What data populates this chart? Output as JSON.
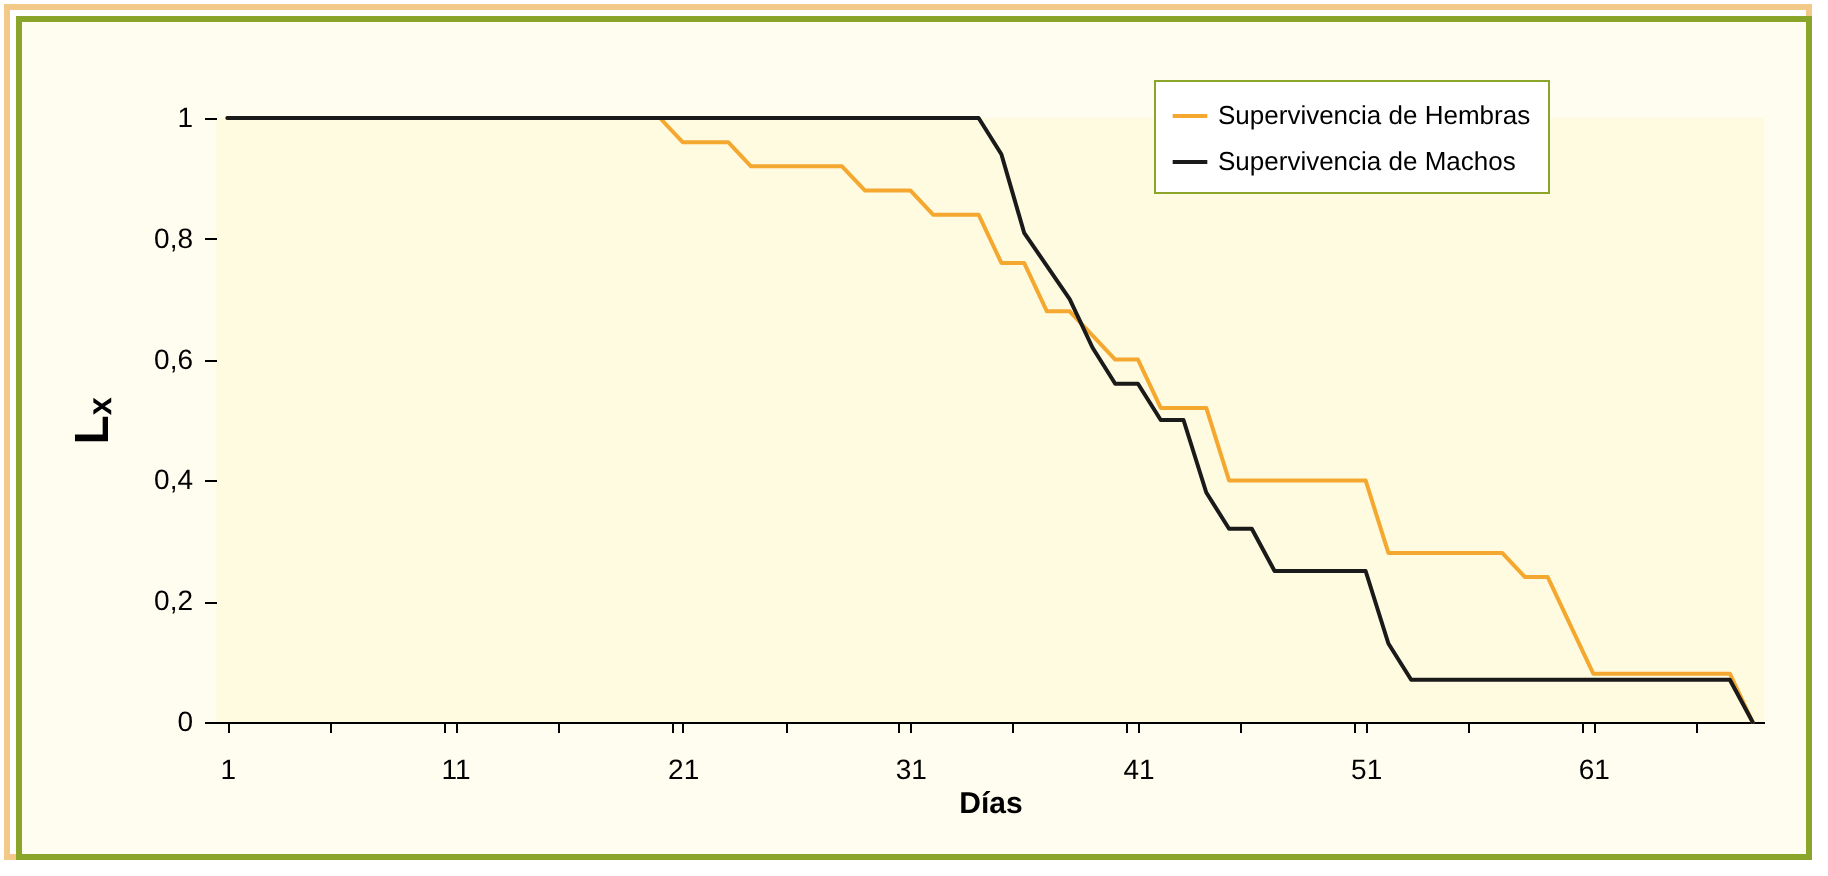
{
  "chart_data": {
    "type": "line",
    "xlabel": "Días",
    "ylabel": "Lₓ",
    "xlim": [
      0.5,
      68.5
    ],
    "xticks": [
      1,
      {
        "value": 5.5,
        "label": null
      },
      {
        "value": 10.5,
        "label": null
      },
      11,
      {
        "value": 15.5,
        "label": null
      },
      {
        "value": 20.5,
        "label": null
      },
      21,
      {
        "value": 25.5,
        "label": null
      },
      {
        "value": 30.5,
        "label": null
      },
      31,
      {
        "value": 35.5,
        "label": null
      },
      {
        "value": 40.5,
        "label": null
      },
      41,
      {
        "value": 45.5,
        "label": null
      },
      {
        "value": 50.5,
        "label": null
      },
      51,
      {
        "value": 55.5,
        "label": null
      },
      {
        "value": 60.5,
        "label": null
      },
      61,
      {
        "value": 65.5,
        "label": null
      }
    ],
    "ylim": [
      0,
      1
    ],
    "yticks": [
      0,
      {
        "value": 0.2,
        "label": "0,2"
      },
      {
        "value": 0.4,
        "label": "0,4"
      },
      {
        "value": 0.6,
        "label": "0,6"
      },
      {
        "value": 0.8,
        "label": "0,8"
      },
      1
    ],
    "grid": false,
    "legend": "top right",
    "marker": "none",
    "line_style": "solid",
    "series": [
      {
        "name": "Supervivencia de Hembras",
        "color": "#f5a830",
        "x": [
          1,
          20,
          21,
          23,
          24,
          28,
          29,
          31,
          32,
          34,
          35,
          36,
          37,
          38,
          39,
          40,
          41,
          42,
          44,
          45,
          51,
          52,
          57,
          58,
          59,
          61,
          67,
          68
        ],
        "values": [
          1,
          1,
          0.96,
          0.96,
          0.92,
          0.92,
          0.88,
          0.88,
          0.84,
          0.84,
          0.76,
          0.76,
          0.68,
          0.68,
          0.64,
          0.6,
          0.6,
          0.52,
          0.52,
          0.4,
          0.4,
          0.28,
          0.28,
          0.24,
          0.24,
          0.08,
          0.08,
          0
        ]
      },
      {
        "name": "Supervivencia de Machos",
        "color": "#1a1a1a",
        "x": [
          1,
          34,
          35,
          36,
          38,
          39,
          40,
          41,
          42,
          43,
          44,
          45,
          46,
          47,
          51,
          52,
          53,
          67,
          68
        ],
        "values": [
          1,
          1,
          0.94,
          0.81,
          0.7,
          0.62,
          0.56,
          0.56,
          0.5,
          0.5,
          0.38,
          0.32,
          0.32,
          0.25,
          0.25,
          0.13,
          0.07,
          0.07,
          0
        ]
      }
    ]
  }
}
